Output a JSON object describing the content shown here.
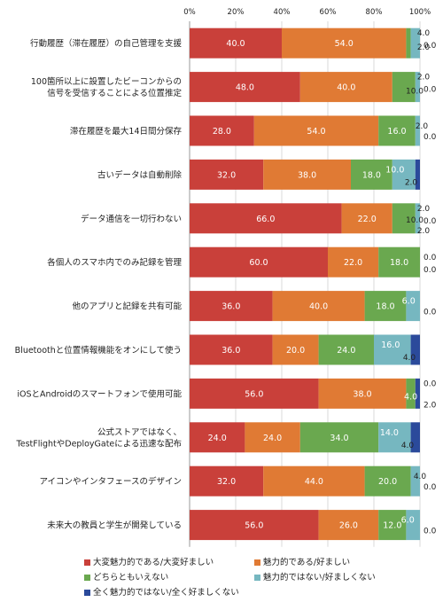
{
  "chart_data": {
    "type": "bar",
    "orientation": "horizontal",
    "stacked": true,
    "xlim": [
      0,
      100
    ],
    "x_tick_labels": [
      "0%",
      "20%",
      "40%",
      "60%",
      "80%",
      "100%"
    ],
    "categories": [
      [
        "行動履歴（滞在履歴）の自己管理を支援"
      ],
      [
        "100箇所以上に設置したビーコンからの",
        "信号を受信することによる位置推定"
      ],
      [
        "滞在履歴を最大14日間分保存"
      ],
      [
        "古いデータは自動削除"
      ],
      [
        "データ通信を一切行わない"
      ],
      [
        "各個人のスマホ内でのみ記録を管理"
      ],
      [
        "他のアプリと記録を共有可能"
      ],
      [
        "Bluetoothと位置情報機能をオンにして使う"
      ],
      [
        "iOSとAndroidのスマートフォンで使用可能"
      ],
      [
        "公式ストアではなく、",
        "TestFlightやDeployGateによる迅速な配布"
      ],
      [
        "アイコンやインタフェースのデザイン"
      ],
      [
        "未来大の教員と学生が開発している"
      ]
    ],
    "series": [
      {
        "name": "大変魅力的である/大変好ましい",
        "color": "#c9403a",
        "values": [
          40,
          48,
          28,
          32,
          66,
          60,
          36,
          36,
          56,
          24,
          32,
          56
        ]
      },
      {
        "name": "魅力的である/好ましい",
        "color": "#e07a34",
        "values": [
          54,
          40,
          54,
          38,
          22,
          22,
          40,
          20,
          38,
          24,
          44,
          26
        ]
      },
      {
        "name": "どちらともいえない",
        "color": "#6aa84f",
        "values": [
          2,
          10,
          16,
          18,
          10,
          18,
          18,
          24,
          4,
          34,
          20,
          12
        ]
      },
      {
        "name": "魅力的ではない/好ましくない",
        "color": "#76b7c0",
        "values": [
          4,
          2,
          2,
          10,
          2,
          0,
          6,
          16,
          0,
          14,
          4,
          6
        ]
      },
      {
        "name": "全く魅力的ではない/全く好ましくない",
        "color": "#2b4a9b",
        "values": [
          0,
          0,
          0,
          2,
          0,
          0,
          0,
          4,
          2,
          4,
          0,
          0
        ]
      }
    ]
  },
  "labels": [
    {
      "i": [
        [
          "40.0",
          0
        ],
        [
          "54.0",
          1
        ]
      ],
      "o": [
        [
          "4.0",
          1,
          10,
          -12,
          "s"
        ],
        [
          "2.0",
          1,
          10,
          4,
          "s"
        ],
        [
          "0.0",
          0,
          0,
          2,
          "e"
        ]
      ]
    },
    {
      "i": [
        [
          "48.0",
          0
        ],
        [
          "40.0",
          1
        ]
      ],
      "o": [
        [
          "2.0",
          1,
          10,
          -12,
          "s"
        ],
        [
          "10.0",
          1,
          0,
          4,
          "s"
        ],
        [
          "0.0",
          0,
          0,
          2,
          "e"
        ]
      ]
    },
    {
      "i": [
        [
          "28.0",
          0
        ],
        [
          "54.0",
          1
        ],
        [
          "16.0",
          2
        ]
      ],
      "o": [
        [
          "2.0",
          1,
          8,
          -6,
          "s"
        ],
        [
          "0.0",
          0,
          0,
          6,
          "e"
        ]
      ]
    },
    {
      "i": [
        [
          "32.0",
          0
        ],
        [
          "38.0",
          1
        ],
        [
          "18.0",
          2
        ]
      ],
      "o": [
        [
          "10.0",
          0,
          -10,
          -6,
          "q"
        ],
        [
          "2.0",
          0,
          -4,
          8,
          "s"
        ]
      ]
    },
    {
      "i": [
        [
          "66.0",
          0
        ],
        [
          "22.0",
          1
        ]
      ],
      "o": [
        [
          "2.0",
          1,
          10,
          -12,
          "s"
        ],
        [
          "10.0",
          1,
          0,
          1,
          "s"
        ],
        [
          "2.0",
          1,
          10,
          13,
          "s"
        ],
        [
          "0.0",
          0,
          0,
          2,
          "e"
        ]
      ]
    },
    {
      "i": [
        [
          "60.0",
          0
        ],
        [
          "22.0",
          1
        ],
        [
          "18.0",
          2
        ]
      ],
      "o": [
        [
          "0.0",
          0,
          0,
          -6,
          "e"
        ],
        [
          "0.0",
          0,
          0,
          8,
          "e"
        ]
      ]
    },
    {
      "i": [
        [
          "36.0",
          0
        ],
        [
          "40.0",
          1
        ],
        [
          "18.0",
          2
        ]
      ],
      "o": [
        [
          "6.0",
          0,
          -5,
          -6,
          "q"
        ],
        [
          "0.0",
          0,
          0,
          6,
          "e"
        ]
      ]
    },
    {
      "i": [
        [
          "36.0",
          0
        ],
        [
          "20.0",
          1
        ],
        [
          "24.0",
          2
        ]
      ],
      "o": [
        [
          "16.0",
          0,
          -2,
          -6,
          "q"
        ],
        [
          "4.0",
          0,
          -6,
          8,
          "s"
        ]
      ]
    },
    {
      "i": [
        [
          "56.0",
          0
        ],
        [
          "38.0",
          1
        ]
      ],
      "o": [
        [
          "4.0",
          0,
          0,
          3,
          "a"
        ],
        [
          "0.0",
          0,
          0,
          -12,
          "e"
        ],
        [
          "2.0",
          0,
          0,
          12,
          "e"
        ]
      ]
    },
    {
      "i": [
        [
          "24.0",
          0
        ],
        [
          "24.0",
          1
        ],
        [
          "34.0",
          2
        ]
      ],
      "o": [
        [
          "14.0",
          0,
          -6,
          -6,
          "q"
        ],
        [
          "4.0",
          0,
          -8,
          8,
          "s"
        ]
      ]
    },
    {
      "i": [
        [
          "32.0",
          0
        ],
        [
          "44.0",
          1
        ],
        [
          "20.0",
          2
        ]
      ],
      "o": [
        [
          "4.0",
          1,
          6,
          -6,
          "s"
        ],
        [
          "0.0",
          0,
          0,
          6,
          "e"
        ]
      ]
    },
    {
      "i": [
        [
          "56.0",
          0
        ],
        [
          "26.0",
          1
        ],
        [
          "12.0",
          2
        ]
      ],
      "o": [
        [
          "6.0",
          0,
          -6,
          -6,
          "q"
        ],
        [
          "0.0",
          0,
          0,
          6,
          "e"
        ]
      ]
    }
  ]
}
